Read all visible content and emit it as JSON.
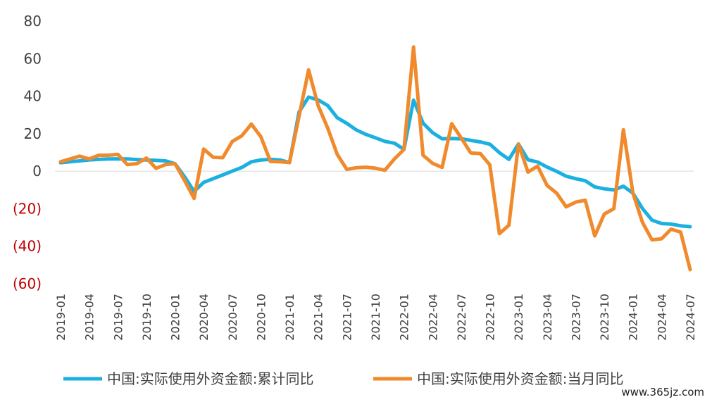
{
  "chart_data": {
    "type": "line",
    "title": "",
    "xlabel": "",
    "ylabel": "",
    "ylim": [
      -60,
      80
    ],
    "y_ticks": [
      {
        "value": 80,
        "label": "80"
      },
      {
        "value": 60,
        "label": "60"
      },
      {
        "value": 40,
        "label": "40"
      },
      {
        "value": 20,
        "label": "20"
      },
      {
        "value": 0,
        "label": "0"
      },
      {
        "value": -20,
        "label": "(20)"
      },
      {
        "value": -40,
        "label": "(40)"
      },
      {
        "value": -60,
        "label": "(60)"
      }
    ],
    "negative_label_color": "#c00000",
    "grid": false,
    "legend_position": "bottom",
    "x_start": "2019-01",
    "x_end": "2024-07",
    "x_tick_labels": [
      "2019-01",
      "2019-04",
      "2019-07",
      "2019-10",
      "2020-01",
      "2020-04",
      "2020-07",
      "2020-10",
      "2021-01",
      "2021-04",
      "2021-07",
      "2021-10",
      "2022-01",
      "2022-04",
      "2022-07",
      "2022-10",
      "2023-01",
      "2023-04",
      "2023-07",
      "2023-10",
      "2024-01",
      "2024-04",
      "2024-07"
    ],
    "series": [
      {
        "name": "中国:实际使用外资金额:累计同比",
        "color": "#1cb0e0",
        "points": [
          [
            "2019-01",
            4.5
          ],
          [
            "2019-02",
            5
          ],
          [
            "2019-03",
            5.5
          ],
          [
            "2019-04",
            6
          ],
          [
            "2019-05",
            6.3
          ],
          [
            "2019-06",
            6.5
          ],
          [
            "2019-07",
            6.6
          ],
          [
            "2019-08",
            6.5
          ],
          [
            "2019-09",
            6.2
          ],
          [
            "2019-10",
            6.0
          ],
          [
            "2019-11",
            5.8
          ],
          [
            "2019-12",
            5.5
          ],
          [
            "2020-01",
            4
          ],
          [
            "2020-02",
            -3
          ],
          [
            "2020-03",
            -10.8
          ],
          [
            "2020-04",
            -6
          ],
          [
            "2020-05",
            -4
          ],
          [
            "2020-06",
            -2
          ],
          [
            "2020-07",
            0
          ],
          [
            "2020-08",
            2
          ],
          [
            "2020-09",
            5
          ],
          [
            "2020-10",
            6
          ],
          [
            "2020-11",
            6.3
          ],
          [
            "2020-12",
            6
          ],
          [
            "2021-01",
            4.6
          ],
          [
            "2021-02",
            31.5
          ],
          [
            "2021-03",
            39.5
          ],
          [
            "2021-04",
            38
          ],
          [
            "2021-05",
            35
          ],
          [
            "2021-06",
            28.5
          ],
          [
            "2021-07",
            25.5
          ],
          [
            "2021-08",
            22
          ],
          [
            "2021-09",
            19.6
          ],
          [
            "2021-10",
            17.8
          ],
          [
            "2021-11",
            15.9
          ],
          [
            "2021-12",
            14.9
          ],
          [
            "2022-01",
            11.6
          ],
          [
            "2022-02",
            37.9
          ],
          [
            "2022-03",
            25.6
          ],
          [
            "2022-04",
            20.5
          ],
          [
            "2022-05",
            17.3
          ],
          [
            "2022-06",
            17.4
          ],
          [
            "2022-07",
            17.3
          ],
          [
            "2022-08",
            16.4
          ],
          [
            "2022-09",
            15.6
          ],
          [
            "2022-10",
            14.4
          ],
          [
            "2022-11",
            9.9
          ],
          [
            "2022-12",
            6.3
          ],
          [
            "2023-01",
            14.5
          ],
          [
            "2023-02",
            6.1
          ],
          [
            "2023-03",
            4.9
          ],
          [
            "2023-04",
            2.2
          ],
          [
            "2023-05",
            -0.1
          ],
          [
            "2023-06",
            -2.7
          ],
          [
            "2023-07",
            -4.0
          ],
          [
            "2023-08",
            -5.1
          ],
          [
            "2023-09",
            -8.4
          ],
          [
            "2023-10",
            -9.4
          ],
          [
            "2023-11",
            -10.0
          ],
          [
            "2023-12",
            -8.0
          ],
          [
            "2024-01",
            -11.7
          ],
          [
            "2024-02",
            -19.9
          ],
          [
            "2024-03",
            -26.1
          ],
          [
            "2024-04",
            -27.9
          ],
          [
            "2024-05",
            -28.2
          ],
          [
            "2024-06",
            -29.1
          ],
          [
            "2024-07",
            -29.6
          ]
        ]
      },
      {
        "name": "中国:实际使用外资金额:当月同比",
        "color": "#f08a2c",
        "points": [
          [
            "2019-01",
            5
          ],
          [
            "2019-02",
            6.5
          ],
          [
            "2019-03",
            8
          ],
          [
            "2019-04",
            6.5
          ],
          [
            "2019-05",
            8.5
          ],
          [
            "2019-06",
            8.5
          ],
          [
            "2019-07",
            9
          ],
          [
            "2019-08",
            3.5
          ],
          [
            "2019-09",
            4
          ],
          [
            "2019-10",
            7
          ],
          [
            "2019-11",
            1.5
          ],
          [
            "2019-12",
            3.5
          ],
          [
            "2020-01",
            4
          ],
          [
            "2020-02",
            -5
          ],
          [
            "2020-03",
            -14.5
          ],
          [
            "2020-04",
            11.8
          ],
          [
            "2020-05",
            7.4
          ],
          [
            "2020-06",
            7.2
          ],
          [
            "2020-07",
            15.8
          ],
          [
            "2020-08",
            18.9
          ],
          [
            "2020-09",
            25.1
          ],
          [
            "2020-10",
            18.3
          ],
          [
            "2020-11",
            5.2
          ],
          [
            "2020-12",
            5.0
          ],
          [
            "2021-01",
            4.6
          ],
          [
            "2021-03",
            54
          ],
          [
            "2021-04",
            35
          ],
          [
            "2021-05",
            23
          ],
          [
            "2021-06",
            9
          ],
          [
            "2021-07",
            1.0
          ],
          [
            "2021-08",
            1.8
          ],
          [
            "2021-09",
            2.1
          ],
          [
            "2021-10",
            1.6
          ],
          [
            "2021-11",
            0.5
          ],
          [
            "2021-12",
            6.5
          ],
          [
            "2022-01",
            11.6
          ],
          [
            "2022-02",
            66.2
          ],
          [
            "2022-03",
            8.5
          ],
          [
            "2022-04",
            4.2
          ],
          [
            "2022-05",
            2.0
          ],
          [
            "2022-06",
            25.3
          ],
          [
            "2022-07",
            17.7
          ],
          [
            "2022-08",
            9.7
          ],
          [
            "2022-09",
            9.4
          ],
          [
            "2022-10",
            3.4
          ],
          [
            "2022-11",
            -33.3
          ],
          [
            "2022-12",
            -28.8
          ],
          [
            "2023-01",
            14.5
          ],
          [
            "2023-02",
            -0.5
          ],
          [
            "2023-03",
            2.7
          ],
          [
            "2023-04",
            -7.6
          ],
          [
            "2023-05",
            -11.7
          ],
          [
            "2023-06",
            -19
          ],
          [
            "2023-07",
            -16.5
          ],
          [
            "2023-08",
            -15.5
          ],
          [
            "2023-09",
            -34.5
          ],
          [
            "2023-10",
            -22.8
          ],
          [
            "2023-11",
            -20
          ],
          [
            "2023-12",
            22.1
          ],
          [
            "2024-01",
            -11.7
          ],
          [
            "2024-02",
            -27.3
          ],
          [
            "2024-03",
            -36.6
          ],
          [
            "2024-04",
            -36
          ],
          [
            "2024-05",
            -30.9
          ],
          [
            "2024-06",
            -32.5
          ],
          [
            "2024-07",
            -52.5
          ]
        ]
      }
    ]
  },
  "watermark": "www.365jz.com"
}
